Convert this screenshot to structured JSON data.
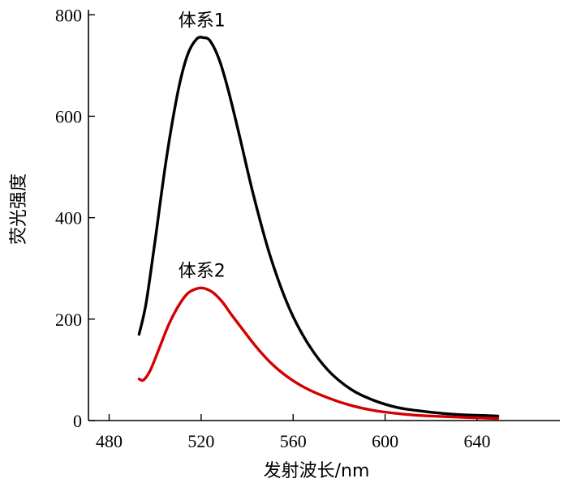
{
  "chart_data": {
    "type": "line",
    "xlabel": "发射波长/nm",
    "ylabel": "荧光强度",
    "xlim": [
      471,
      676
    ],
    "ylim": [
      0,
      810
    ],
    "xticks": [
      480,
      520,
      560,
      600,
      640
    ],
    "yticks": [
      0,
      200,
      400,
      600,
      800
    ],
    "grid": false,
    "series": [
      {
        "name": "体系1",
        "color": "#000000",
        "x": [
          493,
          496,
          500,
          505,
          510,
          514,
          518,
          521,
          524,
          528,
          532,
          537,
          543,
          550,
          558,
          566,
          575,
          585,
          595,
          605,
          615,
          625,
          635,
          643,
          649
        ],
        "y": [
          170,
          230,
          355,
          520,
          650,
          720,
          752,
          755,
          748,
          710,
          648,
          555,
          440,
          325,
          225,
          155,
          100,
          62,
          40,
          26,
          19,
          14,
          11,
          10,
          9
        ]
      },
      {
        "name": "体系2",
        "color": "#d40000",
        "x": [
          493,
          495,
          498,
          502,
          506,
          510,
          514,
          518,
          521,
          525,
          529,
          533,
          538,
          544,
          550,
          557,
          565,
          575,
          585,
          595,
          605,
          615,
          625,
          635,
          643,
          649
        ],
        "y": [
          82,
          80,
          100,
          145,
          190,
          225,
          250,
          260,
          261,
          253,
          235,
          210,
          180,
          145,
          115,
          88,
          65,
          45,
          30,
          20,
          14,
          10,
          8,
          6,
          5,
          4
        ]
      }
    ]
  }
}
